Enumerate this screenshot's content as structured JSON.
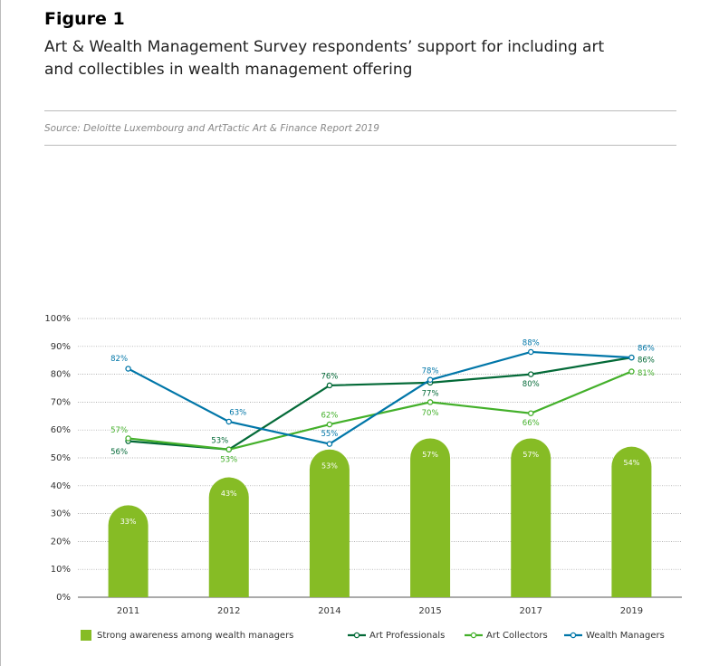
{
  "chart_data": {
    "type": "combo",
    "title": "Figure 1",
    "subtitle": "Art & Wealth Management Survey respondents’ support for including art and collectibles in wealth management offering",
    "source": "Source: Deloitte Luxembourg and ArtTactic Art & Finance Report 2019",
    "categories": [
      "2011",
      "2012",
      "2014",
      "2015",
      "2017",
      "2019"
    ],
    "series": [
      {
        "name": "Strong awareness among wealth managers",
        "type": "bar",
        "color": "#86bc25",
        "values": [
          33,
          43,
          53,
          57,
          57,
          54
        ],
        "value_labels": [
          "33%",
          "43%",
          "53%",
          "57%",
          "57%",
          "54%"
        ]
      },
      {
        "name": "Art Professionals",
        "type": "line",
        "color": "#046a38",
        "values": [
          56,
          53,
          76,
          77,
          80,
          86
        ],
        "value_labels": [
          "56%",
          "53%",
          "76%",
          "77%",
          "80%",
          "86%"
        ]
      },
      {
        "name": "Art Collectors",
        "type": "line",
        "color": "#43b02a",
        "values": [
          57,
          53,
          62,
          70,
          66,
          81
        ],
        "value_labels": [
          "57%",
          "53%",
          "62%",
          "70%",
          "66%",
          "81%"
        ]
      },
      {
        "name": "Wealth Managers",
        "type": "line",
        "color": "#0076a8",
        "values": [
          82,
          63,
          55,
          78,
          88,
          86
        ],
        "value_labels": [
          "82%",
          "63%",
          "55%",
          "78%",
          "88%",
          "86%"
        ]
      }
    ],
    "ylim": [
      0,
      100
    ],
    "yticks": [
      {
        "value": 0,
        "label": "0%"
      },
      {
        "value": 10,
        "label": "10%"
      },
      {
        "value": 20,
        "label": "20%"
      },
      {
        "value": 30,
        "label": "30%"
      },
      {
        "value": 40,
        "label": "40%"
      },
      {
        "value": 50,
        "label": "50%"
      },
      {
        "value": 60,
        "label": "60%"
      },
      {
        "value": 70,
        "label": "70%"
      },
      {
        "value": 80,
        "label": "80%"
      },
      {
        "value": 90,
        "label": "90%"
      },
      {
        "value": 100,
        "label": "100%"
      }
    ],
    "grid": true
  }
}
